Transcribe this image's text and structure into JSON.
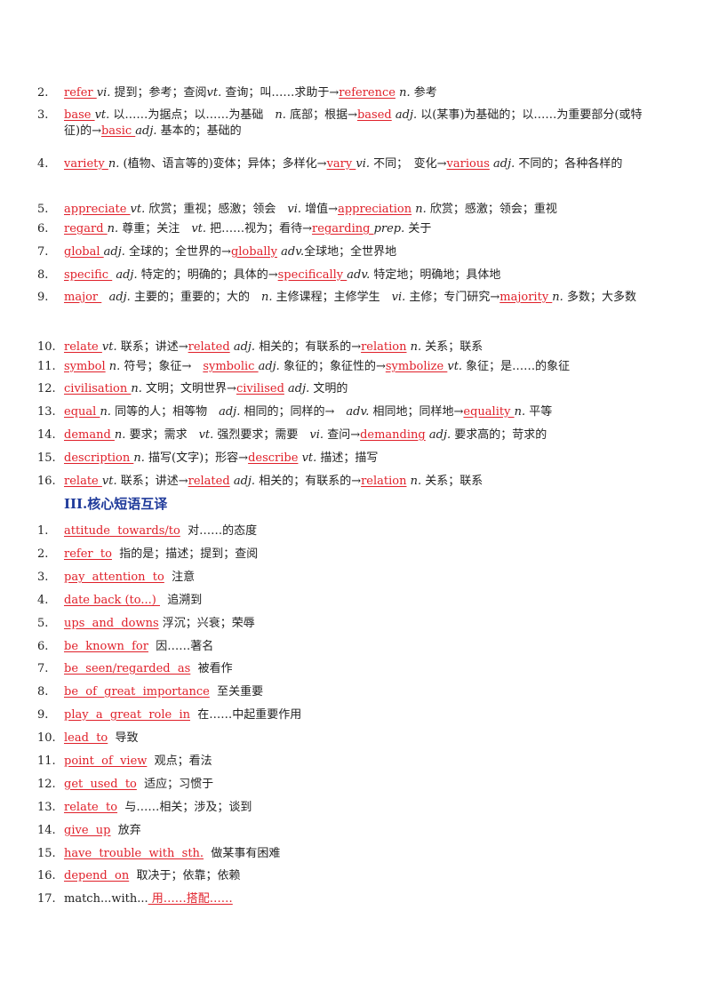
{
  "sec1": [
    {
      "num": "2.",
      "parts": [
        {
          "t": "refer ",
          "r": 1
        },
        {
          "t": "vi.",
          "i": 1
        },
        {
          "t": " 提到；参考；查阅"
        },
        {
          "t": "vt.",
          "i": 1
        },
        {
          "t": " 查询；叫……求助于→"
        },
        {
          "t": "reference",
          "r": 1
        },
        {
          "t": " "
        },
        {
          "t": "n.",
          "i": 1
        },
        {
          "t": " 参考"
        }
      ]
    },
    {
      "num": "3.",
      "parts": [
        {
          "t": "base ",
          "r": 1
        },
        {
          "t": "vt.",
          "i": 1
        },
        {
          "t": " 以……为据点；以……为基础　"
        },
        {
          "t": "n.",
          "i": 1
        },
        {
          "t": " 底部；根据→"
        },
        {
          "t": "based",
          "r": 1
        },
        {
          "t": " "
        },
        {
          "t": "adj.",
          "i": 1
        },
        {
          "t": " 以(某事)为基础的；以……为重要部分(或特征)的→"
        },
        {
          "t": "basic ",
          "r": 1
        },
        {
          "t": "adj.",
          "i": 1
        },
        {
          "t": " 基本的；基础的"
        }
      ]
    },
    {
      "num": "4.",
      "parts": [
        {
          "t": "variety ",
          "r": 1
        },
        {
          "t": "n.",
          "i": 1
        },
        {
          "t": " (植物、语言等的)变体；异体；多样化→"
        },
        {
          "t": "vary ",
          "r": 1
        },
        {
          "t": "vi.",
          "i": 1
        },
        {
          "t": " 不同；　变化→"
        },
        {
          "t": "various",
          "r": 1
        },
        {
          "t": " "
        },
        {
          "t": "adj.",
          "i": 1
        },
        {
          "t": " 不同的；各种各样的"
        }
      ]
    },
    {
      "num": "5.",
      "parts": [
        {
          "t": "appreciate ",
          "r": 1
        },
        {
          "t": "vt.",
          "i": 1
        },
        {
          "t": " 欣赏；重视；感激；领会　"
        },
        {
          "t": "vi.",
          "i": 1
        },
        {
          "t": " 增值→"
        },
        {
          "t": "appreciation",
          "r": 1
        },
        {
          "t": " "
        },
        {
          "t": "n.",
          "i": 1
        },
        {
          "t": " 欣赏；感激；领会；重视"
        }
      ]
    },
    {
      "num": "6.",
      "parts": [
        {
          "t": "regard ",
          "r": 1
        },
        {
          "t": "n.",
          "i": 1
        },
        {
          "t": " 尊重；关注　"
        },
        {
          "t": "vt.",
          "i": 1
        },
        {
          "t": " 把……视为；看待→"
        },
        {
          "t": "regarding ",
          "r": 1
        },
        {
          "t": "prep.",
          "i": 1
        },
        {
          "t": " 关于"
        }
      ]
    },
    {
      "num": "7.",
      "parts": [
        {
          "t": "global ",
          "r": 1
        },
        {
          "t": "adj.",
          "i": 1
        },
        {
          "t": " 全球的；全世界的→"
        },
        {
          "t": "globally",
          "r": 1
        },
        {
          "t": " "
        },
        {
          "t": "adv.",
          "i": 1
        },
        {
          "t": "全球地；全世界地"
        }
      ]
    },
    {
      "num": "8.",
      "parts": [
        {
          "t": "specific ",
          "r": 1
        },
        {
          "t": " "
        },
        {
          "t": "adj.",
          "i": 1
        },
        {
          "t": " 特定的；明确的；具体的→"
        },
        {
          "t": "specifically ",
          "r": 1
        },
        {
          "t": "adv.",
          "i": 1
        },
        {
          "t": " 特定地；明确地；具体地"
        }
      ]
    },
    {
      "num": "9.",
      "parts": [
        {
          "t": "major ",
          "r": 1
        },
        {
          "t": "  "
        },
        {
          "t": "adj.",
          "i": 1
        },
        {
          "t": " 主要的；重要的；大的　"
        },
        {
          "t": "n.",
          "i": 1
        },
        {
          "t": " 主修课程；主修学生　"
        },
        {
          "t": "vi.",
          "i": 1
        },
        {
          "t": " 主修；专门研究→"
        },
        {
          "t": "majority ",
          "r": 1
        },
        {
          "t": "n.",
          "i": 1
        },
        {
          "t": " 多数；大多数"
        }
      ]
    },
    {
      "num": "10.",
      "parts": [
        {
          "t": "relate ",
          "r": 1
        },
        {
          "t": "vt.",
          "i": 1
        },
        {
          "t": " 联系；讲述→"
        },
        {
          "t": "related",
          "r": 1
        },
        {
          "t": " "
        },
        {
          "t": "adj.",
          "i": 1
        },
        {
          "t": " 相关的；有联系的→"
        },
        {
          "t": "relation",
          "r": 1
        },
        {
          "t": " "
        },
        {
          "t": "n.",
          "i": 1
        },
        {
          "t": " 关系；联系"
        }
      ]
    },
    {
      "num": "11.",
      "parts": [
        {
          "t": "symbol",
          "r": 1
        },
        {
          "t": " "
        },
        {
          "t": "n.",
          "i": 1
        },
        {
          "t": " 符号；象征→　"
        },
        {
          "t": "symbolic ",
          "r": 1
        },
        {
          "t": "adj.",
          "i": 1
        },
        {
          "t": " 象征的；象征性的→"
        },
        {
          "t": "symbolize ",
          "r": 1
        },
        {
          "t": "vt.",
          "i": 1
        },
        {
          "t": " 象征；是……的象征"
        }
      ]
    },
    {
      "num": "12.",
      "parts": [
        {
          "t": "civilisation ",
          "r": 1
        },
        {
          "t": "n.",
          "i": 1
        },
        {
          "t": " 文明；文明世界→"
        },
        {
          "t": "civilised",
          "r": 1
        },
        {
          "t": " "
        },
        {
          "t": "adj.",
          "i": 1
        },
        {
          "t": " 文明的"
        }
      ]
    },
    {
      "num": "13.",
      "parts": [
        {
          "t": "equal ",
          "r": 1
        },
        {
          "t": "n.",
          "i": 1
        },
        {
          "t": " 同等的人；相等物　"
        },
        {
          "t": "adj.",
          "i": 1
        },
        {
          "t": " 相同的；同样的→　"
        },
        {
          "t": "adv.",
          "i": 1
        },
        {
          "t": " 相同地；同样地→"
        },
        {
          "t": "equality ",
          "r": 1
        },
        {
          "t": "n.",
          "i": 1
        },
        {
          "t": " 平等"
        }
      ]
    },
    {
      "num": "14.",
      "parts": [
        {
          "t": "demand ",
          "r": 1
        },
        {
          "t": "n.",
          "i": 1
        },
        {
          "t": " 要求；需求　"
        },
        {
          "t": "vt.",
          "i": 1
        },
        {
          "t": " 强烈要求；需要　"
        },
        {
          "t": "vi.",
          "i": 1
        },
        {
          "t": " 查问→"
        },
        {
          "t": "demanding",
          "r": 1
        },
        {
          "t": " "
        },
        {
          "t": "adj.",
          "i": 1
        },
        {
          "t": " 要求高的；苛求的"
        }
      ]
    },
    {
      "num": "15.",
      "parts": [
        {
          "t": "description ",
          "r": 1
        },
        {
          "t": "n.",
          "i": 1
        },
        {
          "t": " 描写(文字)；形容→"
        },
        {
          "t": "describe",
          "r": 1
        },
        {
          "t": " "
        },
        {
          "t": "vt.",
          "i": 1
        },
        {
          "t": " 描述；描写"
        }
      ]
    },
    {
      "num": "16.",
      "parts": [
        {
          "t": "relate ",
          "r": 1
        },
        {
          "t": "vt.",
          "i": 1
        },
        {
          "t": " 联系；讲述→"
        },
        {
          "t": "related",
          "r": 1
        },
        {
          "t": " "
        },
        {
          "t": "adj.",
          "i": 1
        },
        {
          "t": " 相关的；有联系的→"
        },
        {
          "t": "relation",
          "r": 1
        },
        {
          "t": " "
        },
        {
          "t": "n.",
          "i": 1
        },
        {
          "t": " 关系；联系"
        }
      ]
    }
  ],
  "section_heading": "III.核心短语互译",
  "sec2": [
    {
      "num": "1.",
      "parts": [
        {
          "t": "attitude  towards/to",
          "r": 1
        },
        {
          "t": "  对……的态度"
        }
      ]
    },
    {
      "num": "2.",
      "parts": [
        {
          "t": "refer  to",
          "r": 1
        },
        {
          "t": "  指的是；描述；提到；查阅"
        }
      ]
    },
    {
      "num": "3.",
      "parts": [
        {
          "t": "pay  attention  to",
          "r": 1
        },
        {
          "t": "  注意"
        }
      ]
    },
    {
      "num": "4.",
      "parts": [
        {
          "t": "date back (to...) ",
          "r": 1
        },
        {
          "t": "  追溯到"
        }
      ]
    },
    {
      "num": "5.",
      "parts": [
        {
          "t": "ups  and  downs",
          "r": 1
        },
        {
          "t": " 浮沉；兴衰；荣辱"
        }
      ]
    },
    {
      "num": "6.",
      "parts": [
        {
          "t": "be  known  for",
          "r": 1
        },
        {
          "t": "  因……著名"
        }
      ]
    },
    {
      "num": "7.",
      "parts": [
        {
          "t": "be  seen/regarded  as",
          "r": 1
        },
        {
          "t": "  被看作"
        }
      ]
    },
    {
      "num": "8.",
      "parts": [
        {
          "t": "be  of  great  importance",
          "r": 1
        },
        {
          "t": "  至关重要"
        }
      ]
    },
    {
      "num": "9.",
      "parts": [
        {
          "t": "play  a  great  role  in",
          "r": 1
        },
        {
          "t": "  在……中起重要作用"
        }
      ]
    },
    {
      "num": "10.",
      "parts": [
        {
          "t": "lead  to",
          "r": 1
        },
        {
          "t": "  导致"
        }
      ]
    },
    {
      "num": "11.",
      "parts": [
        {
          "t": "point  of  view",
          "r": 1
        },
        {
          "t": "  观点；看法"
        }
      ]
    },
    {
      "num": "12.",
      "parts": [
        {
          "t": "get  used  to",
          "r": 1
        },
        {
          "t": "  适应；习惯于"
        }
      ]
    },
    {
      "num": "13.",
      "parts": [
        {
          "t": "relate  to",
          "r": 1
        },
        {
          "t": "  与……相关；涉及；谈到"
        }
      ]
    },
    {
      "num": "14.",
      "parts": [
        {
          "t": "give  up",
          "r": 1
        },
        {
          "t": "  放弃"
        }
      ]
    },
    {
      "num": "15.",
      "parts": [
        {
          "t": "have  trouble  with  sth.",
          "r": 1
        },
        {
          "t": "  做某事有困难"
        }
      ]
    },
    {
      "num": "16.",
      "parts": [
        {
          "t": "depend  on",
          "r": 1
        },
        {
          "t": "  取决于；依靠；依赖"
        }
      ]
    },
    {
      "num": "17.",
      "parts": [
        {
          "t": "match...with..."
        },
        {
          "t": " 用……搭配……",
          "r": 1
        }
      ]
    }
  ]
}
